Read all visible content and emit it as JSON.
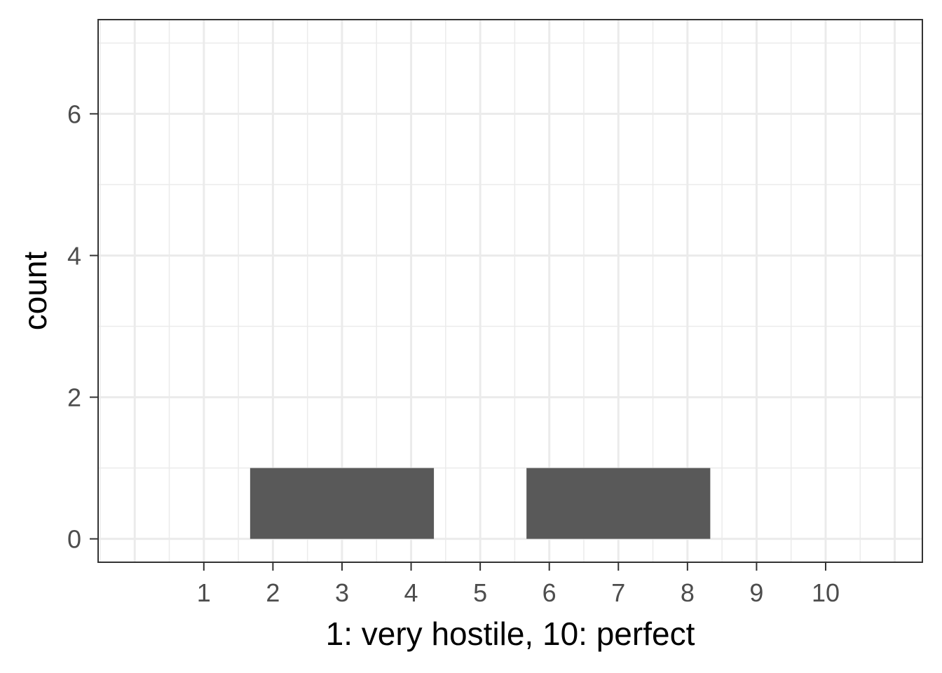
{
  "chart_data": {
    "type": "bar",
    "title": "",
    "xlabel": "1: very hostile, 10: perfect",
    "ylabel": "count",
    "x_ticks": [
      1,
      2,
      3,
      4,
      5,
      6,
      7,
      8,
      9,
      10
    ],
    "y_ticks": [
      0,
      2,
      4,
      6
    ],
    "xlim": [
      -0.53,
      11.4
    ],
    "ylim": [
      -0.33,
      7.33
    ],
    "grid": true,
    "bars": [
      {
        "xmin": 1.67,
        "xmax": 4.33,
        "value": 1
      },
      {
        "xmin": 5.67,
        "xmax": 8.33,
        "value": 1
      }
    ],
    "colors": {
      "bar": "#595959",
      "grid": "#ebebeb",
      "panel_border": "#333333",
      "tick_label": "#4d4d4d"
    }
  }
}
